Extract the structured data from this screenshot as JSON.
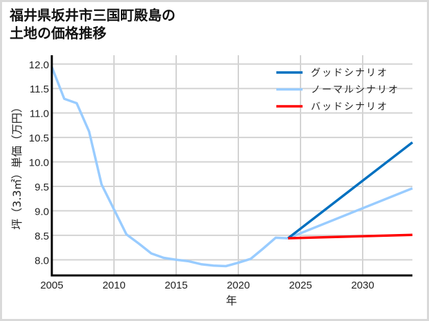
{
  "title": {
    "line1": "福井県坂井市三国町殿島の",
    "line2": "土地の価格推移"
  },
  "chart_data": {
    "type": "line",
    "title": "福井県坂井市三国町殿島の土地の価格推移",
    "xlabel": "年",
    "ylabel": "坪（3.3㎡）単価（万円）",
    "xlim": [
      2005,
      2034
    ],
    "ylim": [
      7.68,
      12.18
    ],
    "xticks": [
      2005,
      2010,
      2015,
      2020,
      2025,
      2030
    ],
    "yticks": [
      8.0,
      8.5,
      9.0,
      9.5,
      10.0,
      10.5,
      11.0,
      11.5,
      12.0
    ],
    "ytick_labels": [
      "8.0",
      "8.5",
      "9.0",
      "9.5",
      "10.0",
      "10.5",
      "11.0",
      "11.5",
      "12.0"
    ],
    "grid": true,
    "legend_position": "upper right",
    "series": [
      {
        "name": "グッドシナリオ",
        "color": "#0070c0",
        "x": [
          2024,
          2034
        ],
        "values": [
          8.44,
          10.4
        ]
      },
      {
        "name": "ノーマルシナリオ",
        "color": "#99ccff",
        "x": [
          2005,
          2006,
          2007,
          2008,
          2009,
          2010,
          2011,
          2012,
          2013,
          2014,
          2015,
          2016,
          2017,
          2018,
          2019,
          2020,
          2021,
          2022,
          2023,
          2024,
          2034
        ],
        "values": [
          11.94,
          11.29,
          11.2,
          10.62,
          9.54,
          9.03,
          8.52,
          8.33,
          8.13,
          8.04,
          8.0,
          7.97,
          7.91,
          7.88,
          7.87,
          7.94,
          8.02,
          8.23,
          8.45,
          8.44,
          9.46
        ]
      },
      {
        "name": "バッドシナリオ",
        "color": "#ff0000",
        "x": [
          2024,
          2034
        ],
        "values": [
          8.44,
          8.51
        ]
      }
    ]
  },
  "style": {
    "grid_color": "#d3d3d3",
    "axis_color": "#000000",
    "frame_border": "#d9d9d9"
  }
}
